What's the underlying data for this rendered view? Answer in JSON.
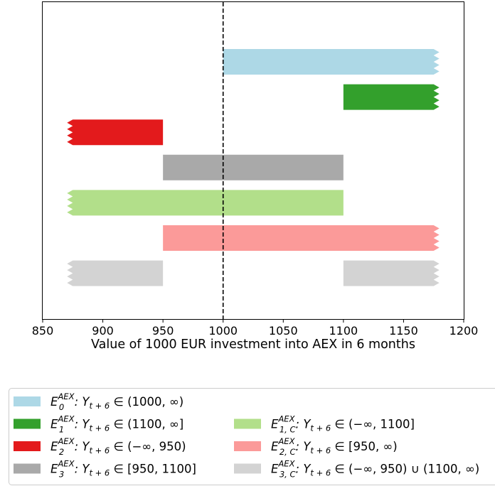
{
  "chart_data": {
    "type": "bar",
    "orientation": "horizontal-range",
    "title": "",
    "xlabel": "Value of 1000 EUR investment into AEX in 6 months",
    "ylabel": "",
    "xlim": [
      850,
      1200
    ],
    "xticks": [
      850,
      900,
      950,
      1000,
      1050,
      1100,
      1150,
      1200
    ],
    "reference_line": {
      "x": 1000,
      "style": "dashed",
      "color": "#000000"
    },
    "grid": false,
    "legend_position": "below",
    "series": [
      {
        "id": "E0",
        "color": "#add8e6",
        "label": {
          "base": "E",
          "sub": "0",
          "sup": "AEX",
          "rest": ": Y",
          "rsub": "t + 6",
          "cond": " ∈ (1000, ∞)"
        },
        "segments": [
          {
            "from": 1000,
            "to": 1175,
            "open_left": false,
            "open_right": true
          }
        ]
      },
      {
        "id": "E1",
        "color": "#33a02c",
        "label": {
          "base": "E",
          "sub": "1",
          "sup": "AEX",
          "rest": ": Y",
          "rsub": "t + 6",
          "cond": " ∈ (1100, ∞]"
        },
        "segments": [
          {
            "from": 1100,
            "to": 1175,
            "open_left": false,
            "open_right": true
          }
        ]
      },
      {
        "id": "E2",
        "color": "#e31a1c",
        "label": {
          "base": "E",
          "sub": "2",
          "sup": "AEX",
          "rest": ": Y",
          "rsub": "t + 6",
          "cond": " ∈ (−∞, 950)"
        },
        "segments": [
          {
            "from": 875,
            "to": 950,
            "open_left": true,
            "open_right": false
          }
        ]
      },
      {
        "id": "E3",
        "color": "#a9a9a9",
        "label": {
          "base": "E",
          "sub": "3",
          "sup": "AEX",
          "rest": ": Y",
          "rsub": "t + 6",
          "cond": " ∈ [950, 1100]"
        },
        "segments": [
          {
            "from": 950,
            "to": 1100,
            "open_left": false,
            "open_right": false
          }
        ]
      },
      {
        "id": "E1C",
        "color": "#b2df8a",
        "label": {
          "base": "E",
          "sub": "1, C",
          "sup": "AEX",
          "rest": ": Y",
          "rsub": "t + 6",
          "cond": " ∈ (−∞, 1100]"
        },
        "segments": [
          {
            "from": 875,
            "to": 1100,
            "open_left": true,
            "open_right": false
          }
        ]
      },
      {
        "id": "E2C",
        "color": "#fb9a99",
        "label": {
          "base": "E",
          "sub": "2, C",
          "sup": "AEX",
          "rest": ": Y",
          "rsub": "t + 6",
          "cond": " ∈ [950, ∞)"
        },
        "segments": [
          {
            "from": 950,
            "to": 1175,
            "open_left": false,
            "open_right": true
          }
        ]
      },
      {
        "id": "E3C",
        "color": "#d3d3d3",
        "label": {
          "base": "E",
          "sub": "3, C",
          "sup": "AEX",
          "rest": ": Y",
          "rsub": "t + 6",
          "cond": " ∈ (−∞, 950) ∪ (1100, ∞)"
        },
        "segments": [
          {
            "from": 875,
            "to": 950,
            "open_left": true,
            "open_right": false
          },
          {
            "from": 1100,
            "to": 1175,
            "open_left": false,
            "open_right": true
          }
        ]
      }
    ],
    "legend_columns": [
      [
        "E0",
        "E1",
        "E2",
        "E3"
      ],
      [
        "E1C",
        "E2C",
        "E3C"
      ]
    ]
  }
}
